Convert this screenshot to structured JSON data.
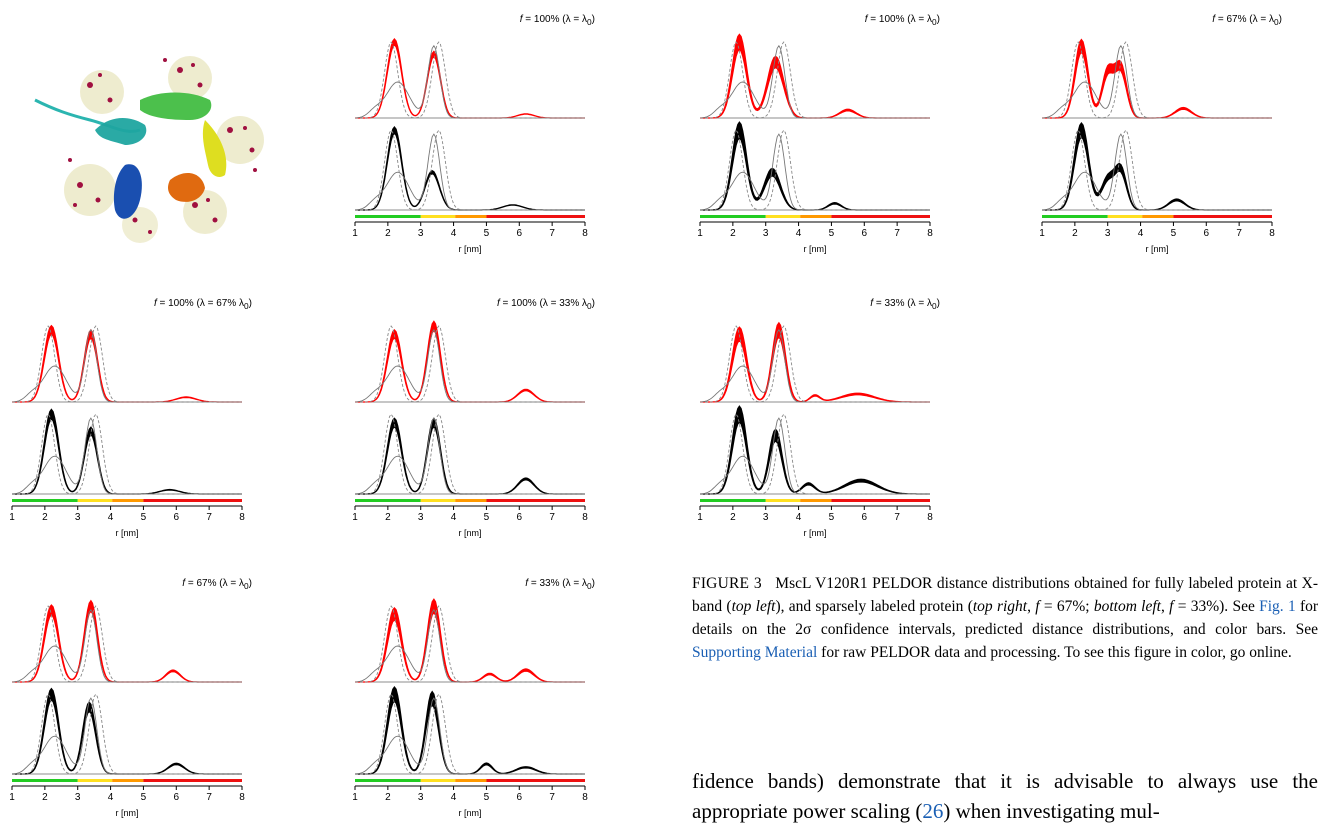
{
  "xaxis_label": "r [nm]",
  "xticks": [
    "1",
    "2",
    "3",
    "4",
    "5",
    "6",
    "7",
    "8"
  ],
  "panels": [
    {
      "id": "p1",
      "f_val": "100%",
      "lam": "λ = λ",
      "lam_sub": "0",
      "lam_pre": "",
      "peaks_red": [
        [
          2.2,
          0.95,
          0.22
        ],
        [
          3.4,
          0.8,
          0.2
        ],
        [
          6.2,
          0.05,
          0.25
        ]
      ],
      "peaks_black": [
        [
          2.2,
          0.95,
          0.22
        ],
        [
          3.35,
          0.45,
          0.22
        ],
        [
          5.8,
          0.06,
          0.3
        ]
      ],
      "band": 0.04
    },
    {
      "id": "p2",
      "f_val": "100%",
      "lam": "λ = λ",
      "lam_sub": "0",
      "lam_pre": "",
      "peaks_red": [
        [
          2.2,
          0.95,
          0.22
        ],
        [
          3.3,
          0.7,
          0.25
        ],
        [
          5.5,
          0.1,
          0.25
        ]
      ],
      "peaks_black": [
        [
          2.2,
          0.95,
          0.22
        ],
        [
          3.2,
          0.45,
          0.25
        ],
        [
          5.1,
          0.08,
          0.2
        ]
      ],
      "band": 0.1
    },
    {
      "id": "p3",
      "f_val": "67%",
      "lam": "λ = λ",
      "lam_sub": "0",
      "lam_pre": "",
      "peaks_red": [
        [
          2.2,
          0.9,
          0.2
        ],
        [
          3.0,
          0.55,
          0.18
        ],
        [
          3.4,
          0.6,
          0.18
        ],
        [
          5.3,
          0.12,
          0.25
        ]
      ],
      "peaks_black": [
        [
          2.2,
          0.95,
          0.22
        ],
        [
          3.0,
          0.35,
          0.2
        ],
        [
          3.4,
          0.45,
          0.18
        ],
        [
          5.1,
          0.12,
          0.25
        ]
      ],
      "band": 0.09
    },
    {
      "id": "p4",
      "f_val": "100%",
      "lam": "λ = 67% λ",
      "lam_sub": "0",
      "lam_pre": "",
      "peaks_red": [
        [
          2.2,
          0.9,
          0.22
        ],
        [
          3.4,
          0.85,
          0.2
        ],
        [
          6.3,
          0.06,
          0.3
        ]
      ],
      "peaks_black": [
        [
          2.2,
          0.95,
          0.22
        ],
        [
          3.4,
          0.75,
          0.2
        ],
        [
          5.8,
          0.05,
          0.3
        ]
      ],
      "band": 0.06
    },
    {
      "id": "p5",
      "f_val": "100%",
      "lam": "λ = 33% λ",
      "lam_sub": "0",
      "lam_pre": "",
      "peaks_red": [
        [
          2.2,
          0.85,
          0.22
        ],
        [
          3.4,
          0.95,
          0.2
        ],
        [
          6.2,
          0.15,
          0.25
        ]
      ],
      "peaks_black": [
        [
          2.2,
          0.85,
          0.22
        ],
        [
          3.4,
          0.85,
          0.2
        ],
        [
          6.2,
          0.18,
          0.25
        ]
      ],
      "band": 0.06
    },
    {
      "id": "p6",
      "f_val": "33%",
      "lam": "λ = λ",
      "lam_sub": "0",
      "lam_pre": "",
      "peaks_red": [
        [
          2.2,
          0.85,
          0.22
        ],
        [
          3.4,
          0.9,
          0.2
        ],
        [
          4.5,
          0.08,
          0.15
        ],
        [
          5.8,
          0.1,
          0.5
        ]
      ],
      "peaks_black": [
        [
          2.2,
          0.95,
          0.22
        ],
        [
          3.3,
          0.7,
          0.2
        ],
        [
          4.3,
          0.12,
          0.2
        ],
        [
          5.9,
          0.16,
          0.5
        ]
      ],
      "band": 0.1
    },
    {
      "id": "p7",
      "f_val": "67%",
      "lam": "λ = λ",
      "lam_sub": "0",
      "lam_pre": "",
      "peaks_red": [
        [
          2.2,
          0.9,
          0.22
        ],
        [
          3.4,
          0.95,
          0.2
        ],
        [
          5.9,
          0.14,
          0.22
        ]
      ],
      "peaks_black": [
        [
          2.2,
          0.95,
          0.22
        ],
        [
          3.35,
          0.8,
          0.2
        ],
        [
          6.0,
          0.12,
          0.25
        ]
      ],
      "band": 0.07
    },
    {
      "id": "p8",
      "f_val": "33%",
      "lam": "λ = λ",
      "lam_sub": "0",
      "lam_pre": "",
      "peaks_red": [
        [
          2.2,
          0.85,
          0.22
        ],
        [
          3.4,
          0.95,
          0.2
        ],
        [
          5.1,
          0.1,
          0.2
        ],
        [
          6.2,
          0.15,
          0.25
        ]
      ],
      "peaks_black": [
        [
          2.2,
          0.95,
          0.22
        ],
        [
          3.35,
          0.9,
          0.2
        ],
        [
          5.0,
          0.12,
          0.18
        ],
        [
          6.2,
          0.08,
          0.3
        ]
      ],
      "band": 0.09
    }
  ],
  "caption": {
    "label": "FIGURE 3",
    "t1": "MscL V120R1 PELDOR distance distributions obtained for fully labeled protein at X-band (",
    "e1": "top left",
    "t2": "), and sparsely labeled protein (",
    "e2": "top right",
    "t3": ", ",
    "f1": "f",
    "t4": " = 67%; ",
    "e3": "bottom left",
    "t5": ", ",
    "f2": "f",
    "t6": " = 33%). See ",
    "fig_link": "Fig. 1",
    "t7": " for details on the 2σ confidence intervals, predicted distance distributions, and color bars. See ",
    "sm_link": "Supporting Material",
    "t8": " for raw PELDOR data and processing. To see this figure in color, go online."
  },
  "body_text": {
    "t1": "fidence bands) demonstrate that it is advisable to always use the appropriate power scaling (",
    "ref": "26",
    "t2": ") when investigating mul-"
  },
  "colors": {
    "red": "#ff0000",
    "black": "#000000",
    "green": "#22cc22",
    "yellow": "#ffe020",
    "orange": "#ff9900",
    "colorbar_red": "#ee1111"
  }
}
